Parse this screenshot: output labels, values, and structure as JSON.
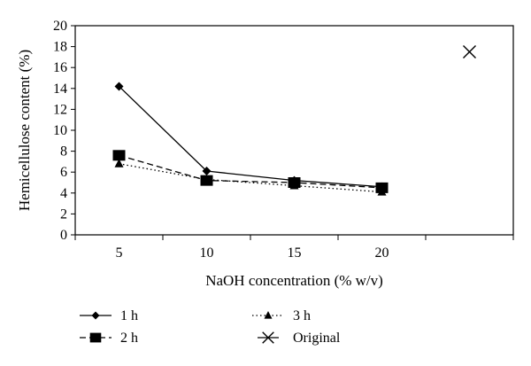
{
  "chart_data": {
    "type": "line",
    "title": "",
    "xlabel": "NaOH concentration (% w/v)",
    "ylabel": "Hemicellulose content (%)",
    "categories": [
      "5",
      "10",
      "15",
      "20",
      ""
    ],
    "x_tick_labels": [
      "5",
      "10",
      "15",
      "20"
    ],
    "y_ticks": [
      0,
      2,
      4,
      6,
      8,
      10,
      12,
      14,
      16,
      18,
      20
    ],
    "ylim": [
      0,
      20
    ],
    "grid": false,
    "legend_position": "bottom",
    "series": [
      {
        "name": "1 h",
        "marker": "diamond",
        "line_style": "solid",
        "color": "#000000",
        "x": [
          "5",
          "10",
          "15",
          "20"
        ],
        "values": [
          14.2,
          6.1,
          5.2,
          4.6
        ]
      },
      {
        "name": "2 h",
        "marker": "square",
        "line_style": "dashed",
        "color": "#000000",
        "x": [
          "5",
          "10",
          "15",
          "20"
        ],
        "values": [
          7.6,
          5.2,
          5.0,
          4.5
        ]
      },
      {
        "name": "3 h",
        "marker": "triangle",
        "line_style": "dotted",
        "color": "#000000",
        "x": [
          "5",
          "10",
          "15",
          "20"
        ],
        "values": [
          6.8,
          5.3,
          4.7,
          4.1
        ]
      },
      {
        "name": "Original",
        "marker": "x",
        "line_style": "none",
        "color": "#000000",
        "x": [
          ""
        ],
        "values": [
          17.5
        ]
      }
    ]
  }
}
